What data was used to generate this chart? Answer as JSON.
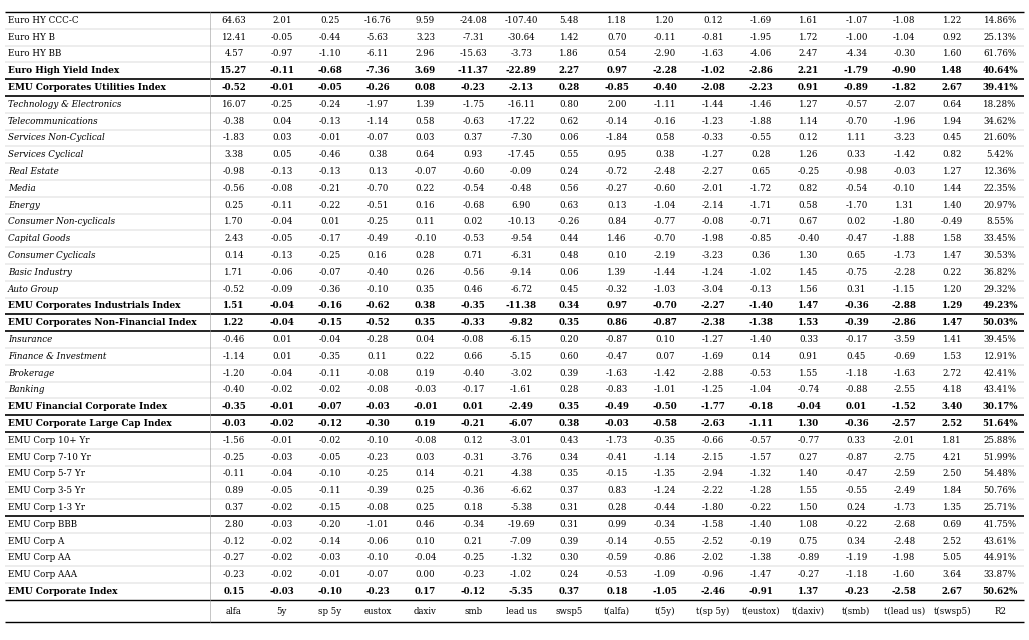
{
  "columns": [
    "alfa",
    "5y",
    "sp 5y",
    "eustox",
    "daxiv",
    "smb",
    "lead us",
    "swsp5",
    "t(alfa)",
    "t(5y)",
    "t(sp 5y)",
    "t(eustox)",
    "t(daxiv)",
    "t(smb)",
    "t(lead us)",
    "t(swsp5)",
    "R2"
  ],
  "rows": [
    {
      "label": "EMU Corporate Index",
      "bold": true,
      "italic": false,
      "values": [
        "0.15",
        "-0.03",
        "-0.10",
        "-0.23",
        "0.17",
        "-0.12",
        "-5.35",
        "0.37",
        "0.18",
        "-1.05",
        "-2.46",
        "-0.91",
        "1.37",
        "-0.23",
        "-2.58",
        "2.67",
        "50.62%"
      ],
      "thick_top": true
    },
    {
      "label": "EMU Corp AAA",
      "bold": false,
      "italic": false,
      "values": [
        "-0.23",
        "-0.02",
        "-0.01",
        "-0.07",
        "0.00",
        "-0.23",
        "-1.02",
        "0.24",
        "-0.53",
        "-1.09",
        "-0.96",
        "-1.47",
        "-0.27",
        "-1.18",
        "-1.60",
        "3.64",
        "33.87%"
      ],
      "thick_top": false
    },
    {
      "label": "EMU Corp AA",
      "bold": false,
      "italic": false,
      "values": [
        "-0.27",
        "-0.02",
        "-0.03",
        "-0.10",
        "-0.04",
        "-0.25",
        "-1.32",
        "0.30",
        "-0.59",
        "-0.86",
        "-2.02",
        "-1.38",
        "-0.89",
        "-1.19",
        "-1.98",
        "5.05",
        "44.91%"
      ],
      "thick_top": false
    },
    {
      "label": "EMU Corp A",
      "bold": false,
      "italic": false,
      "values": [
        "-0.12",
        "-0.02",
        "-0.14",
        "-0.06",
        "0.10",
        "0.21",
        "-7.09",
        "0.39",
        "-0.14",
        "-0.55",
        "-2.52",
        "-0.19",
        "0.75",
        "0.34",
        "-2.48",
        "2.52",
        "43.61%"
      ],
      "thick_top": false
    },
    {
      "label": "EMU Corp BBB",
      "bold": false,
      "italic": false,
      "values": [
        "2.80",
        "-0.03",
        "-0.20",
        "-1.01",
        "0.46",
        "-0.34",
        "-19.69",
        "0.31",
        "0.99",
        "-0.34",
        "-1.58",
        "-1.40",
        "1.08",
        "-0.22",
        "-2.68",
        "0.69",
        "41.75%"
      ],
      "thick_top": false
    },
    {
      "label": "EMU Corp 1-3 Yr",
      "bold": false,
      "italic": false,
      "values": [
        "0.37",
        "-0.02",
        "-0.15",
        "-0.08",
        "0.25",
        "0.18",
        "-5.38",
        "0.31",
        "0.28",
        "-0.44",
        "-1.80",
        "-0.22",
        "1.50",
        "0.24",
        "-1.73",
        "1.35",
        "25.71%"
      ],
      "thick_top": true
    },
    {
      "label": "EMU Corp 3-5 Yr",
      "bold": false,
      "italic": false,
      "values": [
        "0.89",
        "-0.05",
        "-0.11",
        "-0.39",
        "0.25",
        "-0.36",
        "-6.62",
        "0.37",
        "0.83",
        "-1.24",
        "-2.22",
        "-1.28",
        "1.55",
        "-0.55",
        "-2.49",
        "1.84",
        "50.76%"
      ],
      "thick_top": false
    },
    {
      "label": "EMU Corp 5-7 Yr",
      "bold": false,
      "italic": false,
      "values": [
        "-0.11",
        "-0.04",
        "-0.10",
        "-0.25",
        "0.14",
        "-0.21",
        "-4.38",
        "0.35",
        "-0.15",
        "-1.35",
        "-2.94",
        "-1.32",
        "1.40",
        "-0.47",
        "-2.59",
        "2.50",
        "54.48%"
      ],
      "thick_top": false
    },
    {
      "label": "EMU Corp 7-10 Yr",
      "bold": false,
      "italic": false,
      "values": [
        "-0.25",
        "-0.03",
        "-0.05",
        "-0.23",
        "0.03",
        "-0.31",
        "-3.76",
        "0.34",
        "-0.41",
        "-1.14",
        "-2.15",
        "-1.57",
        "0.27",
        "-0.87",
        "-2.75",
        "4.21",
        "51.99%"
      ],
      "thick_top": false
    },
    {
      "label": "EMU Corp 10+ Yr",
      "bold": false,
      "italic": false,
      "values": [
        "-1.56",
        "-0.01",
        "-0.02",
        "-0.10",
        "-0.08",
        "0.12",
        "-3.01",
        "0.43",
        "-1.73",
        "-0.35",
        "-0.66",
        "-0.57",
        "-0.77",
        "0.33",
        "-2.01",
        "1.81",
        "25.88%"
      ],
      "thick_top": false
    },
    {
      "label": "EMU Corporate Large Cap Index",
      "bold": true,
      "italic": false,
      "values": [
        "-0.03",
        "-0.02",
        "-0.12",
        "-0.30",
        "0.19",
        "-0.21",
        "-6.07",
        "0.38",
        "-0.03",
        "-0.58",
        "-2.63",
        "-1.11",
        "1.30",
        "-0.36",
        "-2.57",
        "2.52",
        "51.64%"
      ],
      "thick_top": true
    },
    {
      "label": "EMU Financial Corporate Index",
      "bold": true,
      "italic": false,
      "values": [
        "-0.35",
        "-0.01",
        "-0.07",
        "-0.03",
        "-0.01",
        "0.01",
        "-2.49",
        "0.35",
        "-0.49",
        "-0.50",
        "-1.77",
        "-0.18",
        "-0.04",
        "0.01",
        "-1.52",
        "3.40",
        "30.17%"
      ],
      "thick_top": true
    },
    {
      "label": "Banking",
      "bold": false,
      "italic": true,
      "values": [
        "-0.40",
        "-0.02",
        "-0.02",
        "-0.08",
        "-0.03",
        "-0.17",
        "-1.61",
        "0.28",
        "-0.83",
        "-1.01",
        "-1.25",
        "-1.04",
        "-0.74",
        "-0.88",
        "-2.55",
        "4.18",
        "43.41%"
      ],
      "thick_top": false
    },
    {
      "label": "Brokerage",
      "bold": false,
      "italic": true,
      "values": [
        "-1.20",
        "-0.04",
        "-0.11",
        "-0.08",
        "0.19",
        "-0.40",
        "-3.02",
        "0.39",
        "-1.63",
        "-1.42",
        "-2.88",
        "-0.53",
        "1.55",
        "-1.18",
        "-1.63",
        "2.72",
        "42.41%"
      ],
      "thick_top": false
    },
    {
      "label": "Finance & Investment",
      "bold": false,
      "italic": true,
      "values": [
        "-1.14",
        "0.01",
        "-0.35",
        "0.11",
        "0.22",
        "0.66",
        "-5.15",
        "0.60",
        "-0.47",
        "0.07",
        "-1.69",
        "0.14",
        "0.91",
        "0.45",
        "-0.69",
        "1.53",
        "12.91%"
      ],
      "thick_top": false
    },
    {
      "label": "Insurance",
      "bold": false,
      "italic": true,
      "values": [
        "-0.46",
        "0.01",
        "-0.04",
        "-0.28",
        "0.04",
        "-0.08",
        "-6.15",
        "0.20",
        "-0.87",
        "0.10",
        "-1.27",
        "-1.40",
        "0.33",
        "-0.17",
        "-3.59",
        "1.41",
        "39.45%"
      ],
      "thick_top": false
    },
    {
      "label": "EMU Corporates Non-Financial Index",
      "bold": true,
      "italic": false,
      "values": [
        "1.22",
        "-0.04",
        "-0.15",
        "-0.52",
        "0.35",
        "-0.33",
        "-9.82",
        "0.35",
        "0.86",
        "-0.87",
        "-2.38",
        "-1.38",
        "1.53",
        "-0.39",
        "-2.86",
        "1.47",
        "50.03%"
      ],
      "thick_top": true
    },
    {
      "label": "EMU Corporates Industrials Index",
      "bold": true,
      "italic": false,
      "values": [
        "1.51",
        "-0.04",
        "-0.16",
        "-0.62",
        "0.38",
        "-0.35",
        "-11.38",
        "0.34",
        "0.97",
        "-0.70",
        "-2.27",
        "-1.40",
        "1.47",
        "-0.36",
        "-2.88",
        "1.29",
        "49.23%"
      ],
      "thick_top": true
    },
    {
      "label": "Auto Group",
      "bold": false,
      "italic": true,
      "values": [
        "-0.52",
        "-0.09",
        "-0.36",
        "-0.10",
        "0.35",
        "0.46",
        "-6.72",
        "0.45",
        "-0.32",
        "-1.03",
        "-3.04",
        "-0.13",
        "1.56",
        "0.31",
        "-1.15",
        "1.20",
        "29.32%"
      ],
      "thick_top": false
    },
    {
      "label": "Basic Industry",
      "bold": false,
      "italic": true,
      "values": [
        "1.71",
        "-0.06",
        "-0.07",
        "-0.40",
        "0.26",
        "-0.56",
        "-9.14",
        "0.06",
        "1.39",
        "-1.44",
        "-1.24",
        "-1.02",
        "1.45",
        "-0.75",
        "-2.28",
        "0.22",
        "36.82%"
      ],
      "thick_top": false
    },
    {
      "label": "Consumer Cyclicals",
      "bold": false,
      "italic": true,
      "values": [
        "0.14",
        "-0.13",
        "-0.25",
        "0.16",
        "0.28",
        "0.71",
        "-6.31",
        "0.48",
        "0.10",
        "-2.19",
        "-3.23",
        "0.36",
        "1.30",
        "0.65",
        "-1.73",
        "1.47",
        "30.53%"
      ],
      "thick_top": false
    },
    {
      "label": "Capital Goods",
      "bold": false,
      "italic": true,
      "values": [
        "2.43",
        "-0.05",
        "-0.17",
        "-0.49",
        "-0.10",
        "-0.53",
        "-9.54",
        "0.44",
        "1.46",
        "-0.70",
        "-1.98",
        "-0.85",
        "-0.40",
        "-0.47",
        "-1.88",
        "1.58",
        "33.45%"
      ],
      "thick_top": false
    },
    {
      "label": "Consumer Non-cyclicals",
      "bold": false,
      "italic": true,
      "values": [
        "1.70",
        "-0.04",
        "0.01",
        "-0.25",
        "0.11",
        "0.02",
        "-10.13",
        "-0.26",
        "0.84",
        "-0.77",
        "-0.08",
        "-0.71",
        "0.67",
        "0.02",
        "-1.80",
        "-0.49",
        "8.55%"
      ],
      "thick_top": false
    },
    {
      "label": "Energy",
      "bold": false,
      "italic": true,
      "values": [
        "0.25",
        "-0.11",
        "-0.22",
        "-0.51",
        "0.16",
        "-0.68",
        "6.90",
        "0.63",
        "0.13",
        "-1.04",
        "-2.14",
        "-1.71",
        "0.58",
        "-1.70",
        "1.31",
        "1.40",
        "20.97%"
      ],
      "thick_top": false
    },
    {
      "label": "Media",
      "bold": false,
      "italic": true,
      "values": [
        "-0.56",
        "-0.08",
        "-0.21",
        "-0.70",
        "0.22",
        "-0.54",
        "-0.48",
        "0.56",
        "-0.27",
        "-0.60",
        "-2.01",
        "-1.72",
        "0.82",
        "-0.54",
        "-0.10",
        "1.44",
        "22.35%"
      ],
      "thick_top": false
    },
    {
      "label": "Real Estate",
      "bold": false,
      "italic": true,
      "values": [
        "-0.98",
        "-0.13",
        "-0.13",
        "0.13",
        "-0.07",
        "-0.60",
        "-0.09",
        "0.24",
        "-0.72",
        "-2.48",
        "-2.27",
        "0.65",
        "-0.25",
        "-0.98",
        "-0.03",
        "1.27",
        "12.36%"
      ],
      "thick_top": false
    },
    {
      "label": "Services Cyclical",
      "bold": false,
      "italic": true,
      "values": [
        "3.38",
        "0.05",
        "-0.46",
        "0.38",
        "0.64",
        "0.93",
        "-17.45",
        "0.55",
        "0.95",
        "0.38",
        "-1.27",
        "0.28",
        "1.26",
        "0.33",
        "-1.42",
        "0.82",
        "5.42%"
      ],
      "thick_top": false
    },
    {
      "label": "Services Non-Cyclical",
      "bold": false,
      "italic": true,
      "values": [
        "-1.83",
        "0.03",
        "-0.01",
        "-0.07",
        "0.03",
        "0.37",
        "-7.30",
        "0.06",
        "-1.84",
        "0.58",
        "-0.33",
        "-0.55",
        "0.12",
        "1.11",
        "-3.23",
        "0.45",
        "21.60%"
      ],
      "thick_top": false
    },
    {
      "label": "Telecommunications",
      "bold": false,
      "italic": true,
      "values": [
        "-0.38",
        "0.04",
        "-0.13",
        "-1.14",
        "0.58",
        "-0.63",
        "-17.22",
        "0.62",
        "-0.14",
        "-0.16",
        "-1.23",
        "-1.88",
        "1.14",
        "-0.70",
        "-1.96",
        "1.94",
        "34.62%"
      ],
      "thick_top": false
    },
    {
      "label": "Technology & Electronics",
      "bold": false,
      "italic": true,
      "values": [
        "16.07",
        "-0.25",
        "-0.24",
        "-1.97",
        "1.39",
        "-1.75",
        "-16.11",
        "0.80",
        "2.00",
        "-1.11",
        "-1.44",
        "-1.46",
        "1.27",
        "-0.57",
        "-2.07",
        "0.64",
        "18.28%"
      ],
      "thick_top": false
    },
    {
      "label": "EMU Corporates Utilities Index",
      "bold": true,
      "italic": false,
      "values": [
        "-0.52",
        "-0.01",
        "-0.05",
        "-0.26",
        "0.08",
        "-0.23",
        "-2.13",
        "0.28",
        "-0.85",
        "-0.40",
        "-2.08",
        "-2.23",
        "0.91",
        "-0.89",
        "-1.82",
        "2.67",
        "39.41%"
      ],
      "thick_top": true
    },
    {
      "label": "Euro High Yield Index",
      "bold": true,
      "italic": false,
      "values": [
        "15.27",
        "-0.11",
        "-0.68",
        "-7.36",
        "3.69",
        "-11.37",
        "-22.89",
        "2.27",
        "0.97",
        "-2.28",
        "-1.02",
        "-2.86",
        "2.21",
        "-1.79",
        "-0.90",
        "1.48",
        "40.64%"
      ],
      "thick_top": true
    },
    {
      "label": "Euro HY BB",
      "bold": false,
      "italic": false,
      "values": [
        "4.57",
        "-0.97",
        "-1.10",
        "-6.11",
        "2.96",
        "-15.63",
        "-3.73",
        "1.86",
        "0.54",
        "-2.90",
        "-1.63",
        "-4.06",
        "2.47",
        "-4.34",
        "-0.30",
        "1.60",
        "61.76%"
      ],
      "thick_top": false
    },
    {
      "label": "Euro HY B",
      "bold": false,
      "italic": false,
      "values": [
        "12.41",
        "-0.05",
        "-0.44",
        "-5.63",
        "3.23",
        "-7.31",
        "-30.64",
        "1.42",
        "0.70",
        "-0.11",
        "-0.81",
        "-1.95",
        "1.72",
        "-1.00",
        "-1.04",
        "0.92",
        "25.13%"
      ],
      "thick_top": false
    },
    {
      "label": "Euro HY CCC-C",
      "bold": false,
      "italic": false,
      "values": [
        "64.63",
        "2.01",
        "0.25",
        "-16.76",
        "9.59",
        "-24.08",
        "-107.40",
        "5.48",
        "1.18",
        "1.20",
        "0.12",
        "-1.69",
        "1.61",
        "-1.07",
        "-1.08",
        "1.22",
        "14.86%"
      ],
      "thick_top": false
    }
  ]
}
